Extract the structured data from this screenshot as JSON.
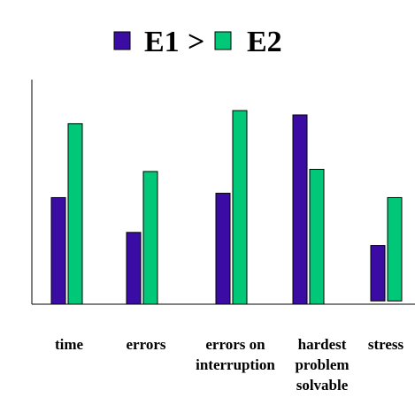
{
  "chart_data": {
    "type": "bar",
    "title": "",
    "xlabel": "",
    "ylabel": "",
    "ylim": [
      0,
      100
    ],
    "grid": false,
    "legend": {
      "placement": "top",
      "separator": ">"
    },
    "categories": [
      [
        "time"
      ],
      [
        "errors"
      ],
      [
        "errors on",
        "interruption"
      ],
      [
        "hardest",
        "problem",
        "solvable"
      ],
      [
        "stress"
      ]
    ],
    "series": [
      {
        "name": "E1",
        "color": "#3a0ca3",
        "values": [
          49,
          33,
          51,
          87,
          27
        ]
      },
      {
        "name": "E2",
        "color": "#00c878",
        "values": [
          83,
          61,
          89,
          62,
          49
        ]
      }
    ],
    "series_base": [
      [
        0,
        0,
        0,
        0,
        1.5
      ],
      [
        0,
        0,
        0,
        0,
        1.5
      ]
    ]
  }
}
